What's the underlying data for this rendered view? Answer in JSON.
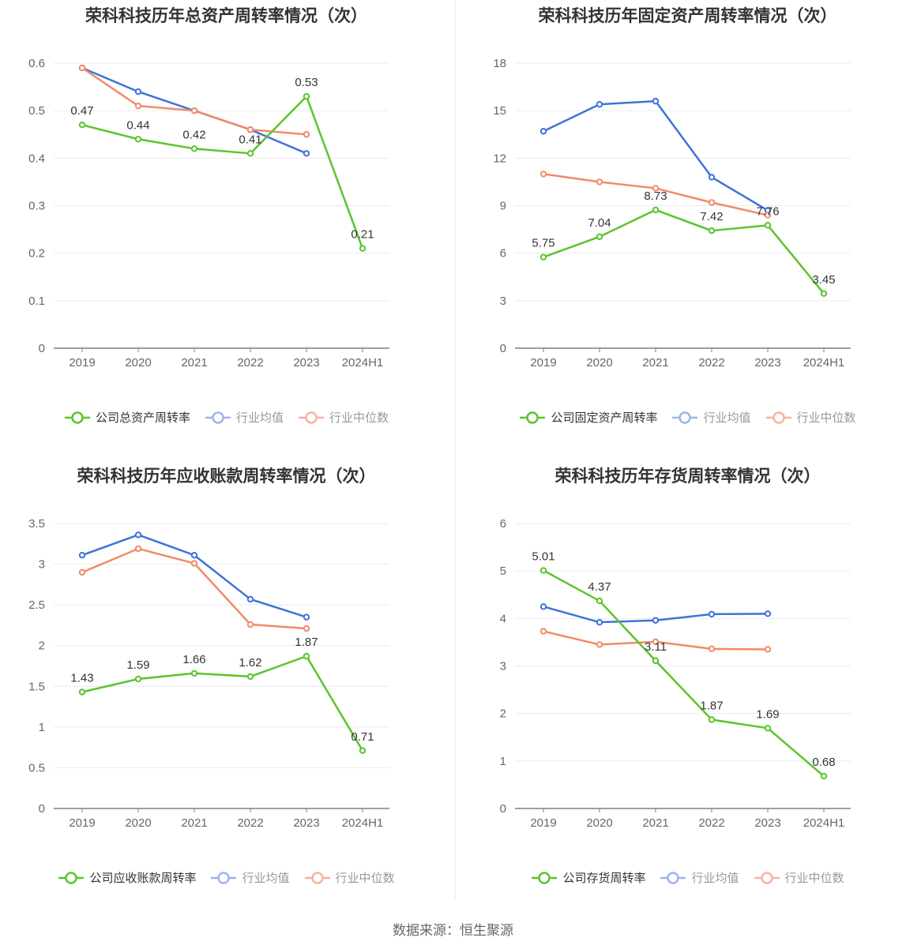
{
  "source_label": "数据来源：恒生聚源",
  "colors": {
    "company": "#5ac52b",
    "industry_avg": "#3f73d9",
    "industry_median": "#f28a67",
    "legend_avg": "#9bb6ea",
    "legend_median": "#f4b4a0",
    "grid": "#e8ebf3",
    "axis": "#7f7f7f",
    "label": "#333333",
    "tick": "#666666"
  },
  "panels": [
    {
      "title": "荣科科技历年总资产周转率情况（次）",
      "legend": [
        "公司总资产周转率",
        "行业均值",
        "行业中位数"
      ],
      "y_ticks": [
        "0",
        "0.1",
        "0.2",
        "0.3",
        "0.4",
        "0.5",
        "0.6"
      ],
      "x_ticks": [
        "2019",
        "2020",
        "2021",
        "2022",
        "2023",
        "2024H1"
      ]
    },
    {
      "title": "荣科科技历年固定资产周转率情况（次）",
      "legend": [
        "公司固定资产周转率",
        "行业均值",
        "行业中位数"
      ],
      "y_ticks": [
        "0",
        "3",
        "6",
        "9",
        "12",
        "15",
        "18"
      ],
      "x_ticks": [
        "2019",
        "2020",
        "2021",
        "2022",
        "2023",
        "2024H1"
      ]
    },
    {
      "title": "荣科科技历年应收账款周转率情况（次）",
      "legend": [
        "公司应收账款周转率",
        "行业均值",
        "行业中位数"
      ],
      "y_ticks": [
        "0",
        "0.5",
        "1",
        "1.5",
        "2",
        "2.5",
        "3",
        "3.5"
      ],
      "x_ticks": [
        "2019",
        "2020",
        "2021",
        "2022",
        "2023",
        "2024H1"
      ]
    },
    {
      "title": "荣科科技历年存货周转率情况（次）",
      "legend": [
        "公司存货周转率",
        "行业均值",
        "行业中位数"
      ],
      "y_ticks": [
        "0",
        "1",
        "2",
        "3",
        "4",
        "5",
        "6"
      ],
      "x_ticks": [
        "2019",
        "2020",
        "2021",
        "2022",
        "2023",
        "2024H1"
      ]
    }
  ],
  "chart_data": [
    {
      "type": "line",
      "title": "荣科科技历年总资产周转率情况（次）",
      "categories": [
        "2019",
        "2020",
        "2021",
        "2022",
        "2023",
        "2024H1"
      ],
      "ylim": [
        0,
        0.6
      ],
      "grid": true,
      "legend_position": "bottom",
      "series": [
        {
          "name": "公司总资产周转率",
          "values": [
            0.47,
            0.44,
            0.42,
            0.41,
            0.53,
            0.21
          ],
          "labels": [
            "0.47",
            "0.44",
            "0.42",
            "0.41",
            "0.53",
            "0.21"
          ]
        },
        {
          "name": "行业均值",
          "values": [
            0.59,
            0.54,
            0.5,
            0.46,
            0.41,
            null
          ]
        },
        {
          "name": "行业中位数",
          "values": [
            0.59,
            0.51,
            0.5,
            0.46,
            0.45,
            null
          ]
        }
      ]
    },
    {
      "type": "line",
      "title": "荣科科技历年固定资产周转率情况（次）",
      "categories": [
        "2019",
        "2020",
        "2021",
        "2022",
        "2023",
        "2024H1"
      ],
      "ylim": [
        0,
        18
      ],
      "grid": true,
      "legend_position": "bottom",
      "series": [
        {
          "name": "公司固定资产周转率",
          "values": [
            5.75,
            7.04,
            8.73,
            7.42,
            7.76,
            3.45
          ],
          "labels": [
            "5.75",
            "7.04",
            "8.73",
            "7.42",
            "7.76",
            "3.45"
          ]
        },
        {
          "name": "行业均值",
          "values": [
            13.7,
            15.4,
            15.6,
            10.8,
            8.7,
            null
          ]
        },
        {
          "name": "行业中位数",
          "values": [
            11.0,
            10.5,
            10.1,
            9.2,
            8.4,
            null
          ]
        }
      ]
    },
    {
      "type": "line",
      "title": "荣科科技历年应收账款周转率情况（次）",
      "categories": [
        "2019",
        "2020",
        "2021",
        "2022",
        "2023",
        "2024H1"
      ],
      "ylim": [
        0,
        3.5
      ],
      "grid": true,
      "legend_position": "bottom",
      "series": [
        {
          "name": "公司应收账款周转率",
          "values": [
            1.43,
            1.59,
            1.66,
            1.62,
            1.87,
            0.71
          ],
          "labels": [
            "1.43",
            "1.59",
            "1.66",
            "1.62",
            "1.87",
            "0.71"
          ]
        },
        {
          "name": "行业均值",
          "values": [
            3.11,
            3.36,
            3.11,
            2.57,
            2.35,
            null
          ]
        },
        {
          "name": "行业中位数",
          "values": [
            2.9,
            3.19,
            3.01,
            2.26,
            2.21,
            null
          ]
        }
      ]
    },
    {
      "type": "line",
      "title": "荣科科技历年存货周转率情况（次）",
      "categories": [
        "2019",
        "2020",
        "2021",
        "2022",
        "2023",
        "2024H1"
      ],
      "ylim": [
        0,
        6
      ],
      "grid": true,
      "legend_position": "bottom",
      "series": [
        {
          "name": "公司存货周转率",
          "values": [
            5.01,
            4.37,
            3.11,
            1.87,
            1.69,
            0.68
          ],
          "labels": [
            "5.01",
            "4.37",
            "3.11",
            "1.87",
            "1.69",
            "0.68"
          ]
        },
        {
          "name": "行业均值",
          "values": [
            4.25,
            3.92,
            3.96,
            4.09,
            4.1,
            null
          ]
        },
        {
          "name": "行业中位数",
          "values": [
            3.73,
            3.45,
            3.51,
            3.36,
            3.35,
            null
          ]
        }
      ]
    }
  ]
}
